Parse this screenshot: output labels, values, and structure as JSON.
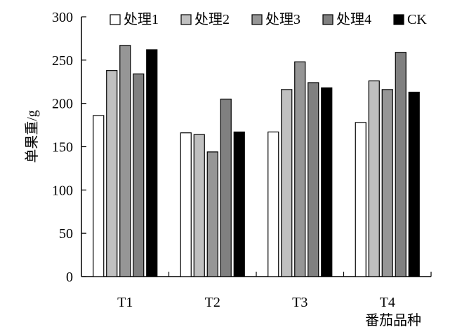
{
  "chart_data": {
    "type": "bar",
    "categories": [
      "T1",
      "T2",
      "T3",
      "T4"
    ],
    "series": [
      {
        "name": "处理1",
        "color": "#ffffff",
        "values": [
          186,
          166,
          167,
          178
        ]
      },
      {
        "name": "处理2",
        "color": "#c0c0c0",
        "values": [
          238,
          164,
          216,
          226
        ]
      },
      {
        "name": "处理3",
        "color": "#969696",
        "values": [
          267,
          144,
          248,
          216
        ]
      },
      {
        "name": "处理4",
        "color": "#808080",
        "values": [
          234,
          205,
          224,
          259
        ]
      },
      {
        "name": "CK",
        "color": "#000000",
        "values": [
          262,
          167,
          218,
          213
        ]
      }
    ],
    "xlabel": "番茄品种",
    "ylabel": "单果重/g",
    "ylim": [
      0,
      300
    ],
    "yticks": [
      0,
      50,
      100,
      150,
      200,
      250,
      300
    ],
    "grid": false,
    "legend_position": "top"
  }
}
